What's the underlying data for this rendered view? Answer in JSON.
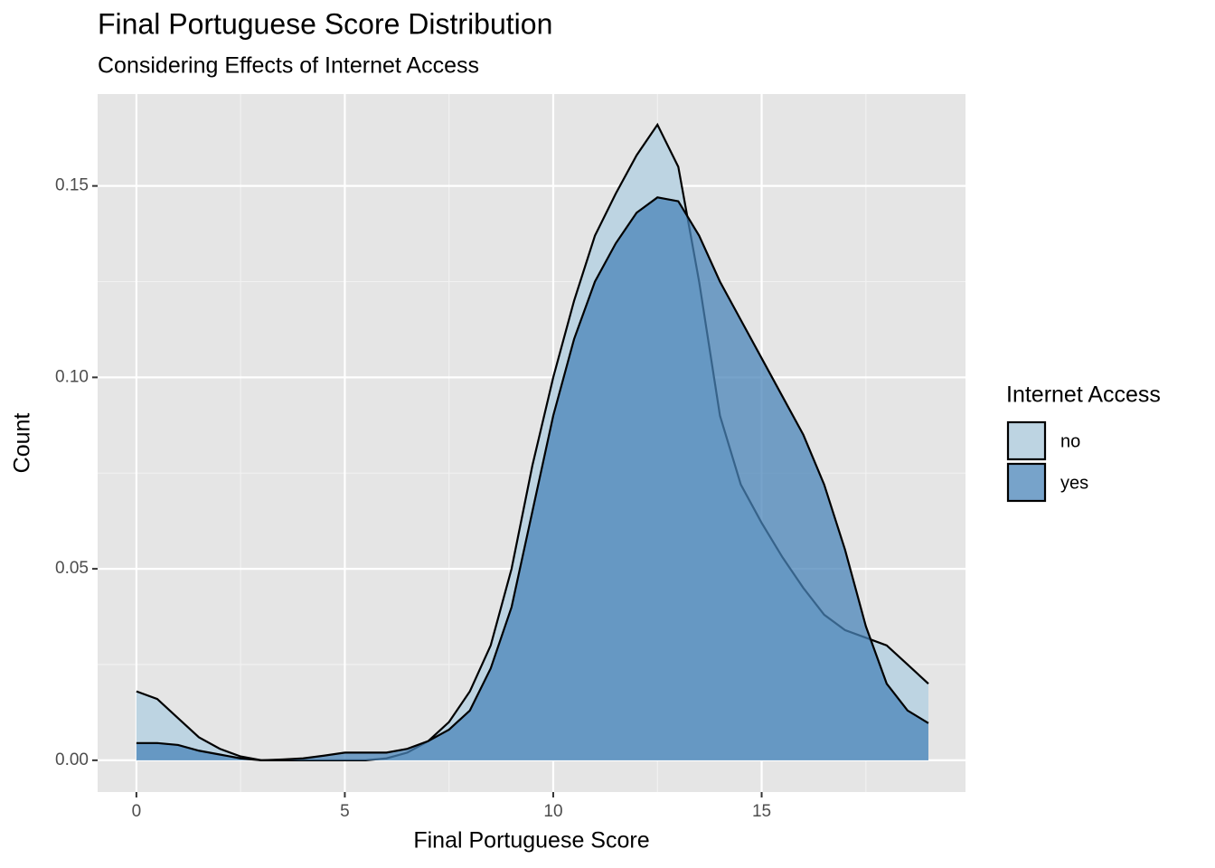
{
  "chart_data": {
    "type": "density",
    "title": "Final Portuguese Score Distribution",
    "subtitle": "Considering Effects of Internet Access",
    "x_label": "Final Portuguese Score",
    "y_label": "Count",
    "legend_title": "Internet Access",
    "legend_position": "right",
    "grid": true,
    "x": [
      0,
      0.5,
      1,
      1.5,
      2,
      2.5,
      3,
      3.5,
      4,
      4.5,
      5,
      5.5,
      6,
      6.5,
      7,
      7.5,
      8,
      8.5,
      9,
      9.5,
      10,
      10.5,
      11,
      11.5,
      12,
      12.5,
      13,
      13.5,
      14,
      14.5,
      15,
      15.5,
      16,
      16.5,
      17,
      17.5,
      18,
      18.5,
      19
    ],
    "series": [
      {
        "name": "no",
        "color": "#bdd4e2",
        "values": [
          0.018,
          0.016,
          0.011,
          0.006,
          0.003,
          0.001,
          0,
          0,
          0,
          0,
          0,
          0,
          0.0005,
          0.002,
          0.005,
          0.01,
          0.018,
          0.03,
          0.05,
          0.077,
          0.1,
          0.12,
          0.137,
          0.148,
          0.158,
          0.166,
          0.155,
          0.125,
          0.09,
          0.072,
          0.062,
          0.053,
          0.045,
          0.038,
          0.034,
          0.032,
          0.03,
          0.025,
          0.02
        ]
      },
      {
        "name": "yes",
        "color": "#4a84b8",
        "values": [
          0.0045,
          0.0045,
          0.004,
          0.0025,
          0.0015,
          0.0005,
          0,
          0.0002,
          0.0005,
          0.0012,
          0.002,
          0.002,
          0.002,
          0.003,
          0.005,
          0.008,
          0.013,
          0.024,
          0.04,
          0.065,
          0.09,
          0.11,
          0.125,
          0.135,
          0.143,
          0.147,
          0.146,
          0.137,
          0.125,
          0.115,
          0.105,
          0.095,
          0.085,
          0.072,
          0.055,
          0.035,
          0.02,
          0.013,
          0.0097
        ]
      }
    ],
    "xlim": [
      -0.93,
      19.89
    ],
    "ylim": [
      -0.0083,
      0.174
    ],
    "xticks": [
      0,
      5,
      10,
      15
    ],
    "x_minor_ticks": [
      2.5,
      7.5,
      12.5,
      17.5
    ],
    "yticks": [
      {
        "value": 0,
        "label": "0.00"
      },
      {
        "value": 0.05,
        "label": "0.05"
      },
      {
        "value": 0.1,
        "label": "0.10"
      },
      {
        "value": 0.15,
        "label": "0.15"
      }
    ],
    "y_minor_ticks": [
      0.025,
      0.075,
      0.125
    ]
  }
}
